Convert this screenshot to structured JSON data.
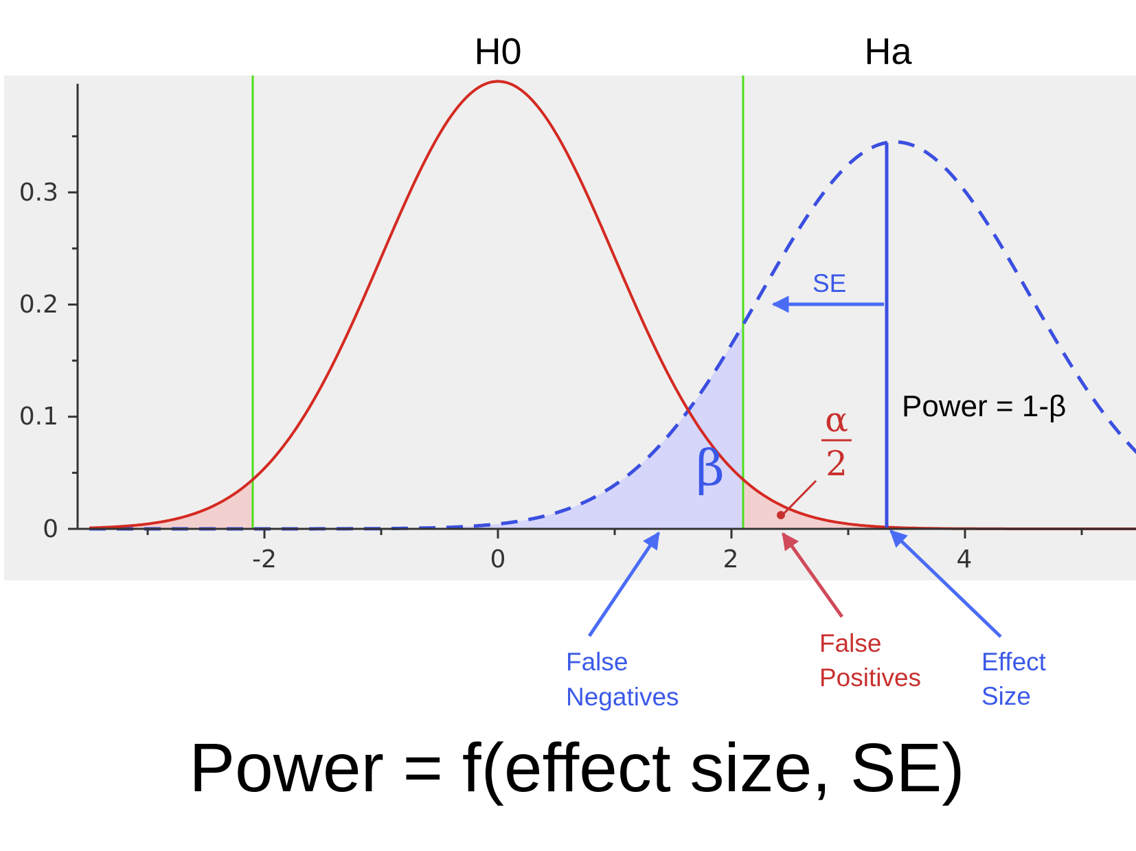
{
  "chart_data": {
    "type": "line",
    "xlim": [
      -3.5,
      5.5
    ],
    "ylim": [
      0,
      0.4
    ],
    "x_ticks": [
      "-2",
      "0",
      "2",
      "4"
    ],
    "y_ticks": [
      "0",
      "0.1",
      "0.2",
      "0.3"
    ],
    "series": [
      {
        "name": "H0",
        "distribution": "normal",
        "mean": 0,
        "sd": 1,
        "peak": 0.399,
        "color": "#d42a22",
        "style": "solid"
      },
      {
        "name": "Ha",
        "distribution": "normal",
        "mean": 3.4,
        "sd": 1.15,
        "peak": 0.345,
        "color": "#3b4fe0",
        "style": "dashed"
      }
    ],
    "critical_values": [
      -2.1,
      2.1
    ],
    "critical_line_color": "#4ce01a",
    "shading": {
      "alpha_color": "#f3d0d0",
      "beta_color": "#d6d6fb"
    },
    "background": "#efefef",
    "grid": false
  },
  "labels": {
    "h0": "H0",
    "ha": "Ha",
    "se": "SE",
    "beta": "β",
    "alpha_num": "α",
    "alpha_den": "2",
    "power": "Power = 1-β",
    "false_negatives_1": "False",
    "false_negatives_2": "Negatives",
    "false_positives_1": "False",
    "false_positives_2": "Positives",
    "effect_size_1": "Effect",
    "effect_size_2": "Size",
    "formula": "Power = f(effect size, SE)"
  },
  "colors": {
    "blue_annotation": "#3b59e8",
    "red_annotation": "#c8312f",
    "arrow_blue": "#4a6cf5",
    "arrow_red": "#d04a5a"
  }
}
